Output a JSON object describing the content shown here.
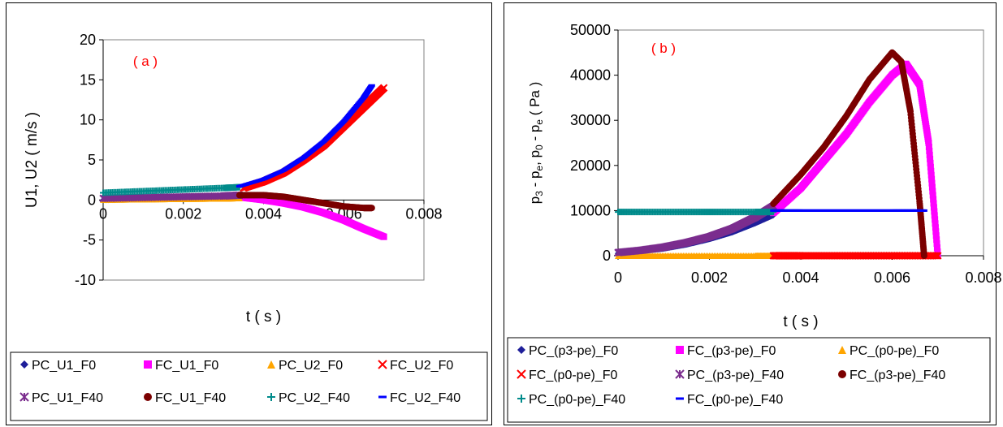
{
  "chart_data": [
    {
      "type": "scatter",
      "title": "( a )",
      "xlabel": "t ( s )",
      "ylabel": "U1, U2 ( m/s )",
      "xlim": [
        0,
        0.008
      ],
      "ylim": [
        -10,
        20
      ],
      "xticks": [
        "0",
        "0.002",
        "0.004",
        "0.006",
        "0.008"
      ],
      "yticks": [
        "-10",
        "-5",
        "0",
        "5",
        "10",
        "15",
        "20"
      ],
      "grid": false,
      "legend_position": "bottom",
      "series": [
        {
          "name": "PC_U1_F0",
          "color": "#1F1F9A",
          "marker": "diamond",
          "x": [
            0,
            0.001,
            0.002,
            0.003,
            0.0034
          ],
          "y": [
            0,
            0.1,
            0.2,
            0.3,
            0.35
          ]
        },
        {
          "name": "FC_U1_F0",
          "color": "#FF00FF",
          "marker": "square",
          "x": [
            0.0035,
            0.004,
            0.0045,
            0.005,
            0.0055,
            0.006,
            0.0065,
            0.007
          ],
          "y": [
            0.3,
            0,
            -0.4,
            -0.9,
            -1.6,
            -2.5,
            -3.6,
            -4.6
          ]
        },
        {
          "name": "PC_U2_F0",
          "color": "#FFA500",
          "marker": "triangle",
          "x": [
            0,
            0.001,
            0.002,
            0.003,
            0.0034
          ],
          "y": [
            0.05,
            0.1,
            0.15,
            0.2,
            0.25
          ]
        },
        {
          "name": "FC_U2_F0",
          "color": "#FF0000",
          "marker": "x",
          "x": [
            0.0035,
            0.004,
            0.0045,
            0.005,
            0.0055,
            0.006,
            0.0065,
            0.007
          ],
          "y": [
            1.5,
            2.3,
            3.4,
            5,
            6.8,
            9.2,
            11.6,
            14
          ]
        },
        {
          "name": "PC_U1_F40",
          "color": "#7B2D8E",
          "marker": "star",
          "x": [
            0,
            0.001,
            0.002,
            0.003,
            0.0034
          ],
          "y": [
            0.2,
            0.3,
            0.4,
            0.5,
            0.6
          ]
        },
        {
          "name": "FC_U1_F40",
          "color": "#7B0000",
          "marker": "circle",
          "x": [
            0.0034,
            0.004,
            0.0045,
            0.005,
            0.0055,
            0.006,
            0.0065,
            0.0067
          ],
          "y": [
            0.6,
            0.6,
            0.4,
            0,
            -0.4,
            -0.8,
            -1,
            -1
          ]
        },
        {
          "name": "PC_U2_F40",
          "color": "#008B8B",
          "marker": "plus",
          "x": [
            0,
            0.001,
            0.002,
            0.003,
            0.0034
          ],
          "y": [
            0.9,
            1.1,
            1.3,
            1.5,
            1.6
          ]
        },
        {
          "name": "FC_U2_F40",
          "color": "#0000FF",
          "marker": "dash",
          "x": [
            0.0034,
            0.004,
            0.0045,
            0.005,
            0.0055,
            0.006,
            0.0065,
            0.0067
          ],
          "y": [
            1.7,
            2.6,
            3.7,
            5.3,
            7.3,
            9.8,
            12.8,
            14.3
          ]
        }
      ]
    },
    {
      "type": "scatter",
      "title": "( b )",
      "xlabel": "t ( s )",
      "ylabel_parts": [
        "p",
        "3",
        " - p",
        "e",
        ", p",
        "0",
        " - p",
        "e",
        " ( Pa )"
      ],
      "xlim": [
        0,
        0.008
      ],
      "ylim": [
        0,
        50000
      ],
      "xticks": [
        "0",
        "0.002",
        "0.004",
        "0.006",
        "0.008"
      ],
      "yticks": [
        "0",
        "10000",
        "20000",
        "30000",
        "40000",
        "50000"
      ],
      "grid": false,
      "legend_position": "bottom",
      "series": [
        {
          "name": "PC_(p3-pe)_F0",
          "color": "#1F1F9A",
          "marker": "diamond",
          "x": [
            0,
            0.0005,
            0.001,
            0.0015,
            0.002,
            0.0025,
            0.003,
            0.0034
          ],
          "y": [
            500,
            1000,
            1600,
            2500,
            3700,
            5200,
            7200,
            9000
          ]
        },
        {
          "name": "FC_(p3-pe)_F0",
          "color": "#FF00FF",
          "marker": "square",
          "x": [
            0.0034,
            0.004,
            0.0045,
            0.005,
            0.0055,
            0.006,
            0.0063,
            0.0066,
            0.0068,
            0.007
          ],
          "y": [
            9500,
            15000,
            21000,
            27000,
            34000,
            40000,
            42500,
            38000,
            25000,
            0
          ]
        },
        {
          "name": "PC_(p0-pe)_F0",
          "color": "#FFA500",
          "marker": "triangle",
          "x": [
            0,
            0.001,
            0.002,
            0.003,
            0.0034
          ],
          "y": [
            0,
            0,
            0,
            0,
            0
          ]
        },
        {
          "name": "FC_(p0-pe)_F0",
          "color": "#FF0000",
          "marker": "x",
          "x": [
            0.0034,
            0.004,
            0.005,
            0.006,
            0.007
          ],
          "y": [
            0,
            0,
            0,
            0,
            0
          ]
        },
        {
          "name": "PC_(p3-pe)_F40",
          "color": "#7B2D8E",
          "marker": "star",
          "x": [
            0,
            0.0005,
            0.001,
            0.0015,
            0.002,
            0.0025,
            0.003,
            0.0034
          ],
          "y": [
            700,
            1200,
            1900,
            2900,
            4200,
            6000,
            8500,
            11000
          ]
        },
        {
          "name": "FC_(p3-pe)_F40",
          "color": "#7B0000",
          "marker": "circle",
          "x": [
            0.0034,
            0.004,
            0.0045,
            0.005,
            0.0055,
            0.006,
            0.0062,
            0.0064,
            0.0066,
            0.0067
          ],
          "y": [
            11500,
            18000,
            24000,
            31000,
            39000,
            45000,
            43000,
            32000,
            12000,
            0
          ]
        },
        {
          "name": "PC_(p0-pe)_F40",
          "color": "#008B8B",
          "marker": "plus",
          "x": [
            0,
            0.001,
            0.002,
            0.003,
            0.0034
          ],
          "y": [
            9700,
            9700,
            9700,
            9700,
            9700
          ]
        },
        {
          "name": "FC_(p0-pe)_F40",
          "color": "#0000FF",
          "marker": "dash",
          "x": [
            0.0034,
            0.004,
            0.005,
            0.006,
            0.0067
          ],
          "y": [
            10000,
            10000,
            10000,
            10000,
            10000
          ]
        }
      ]
    }
  ]
}
